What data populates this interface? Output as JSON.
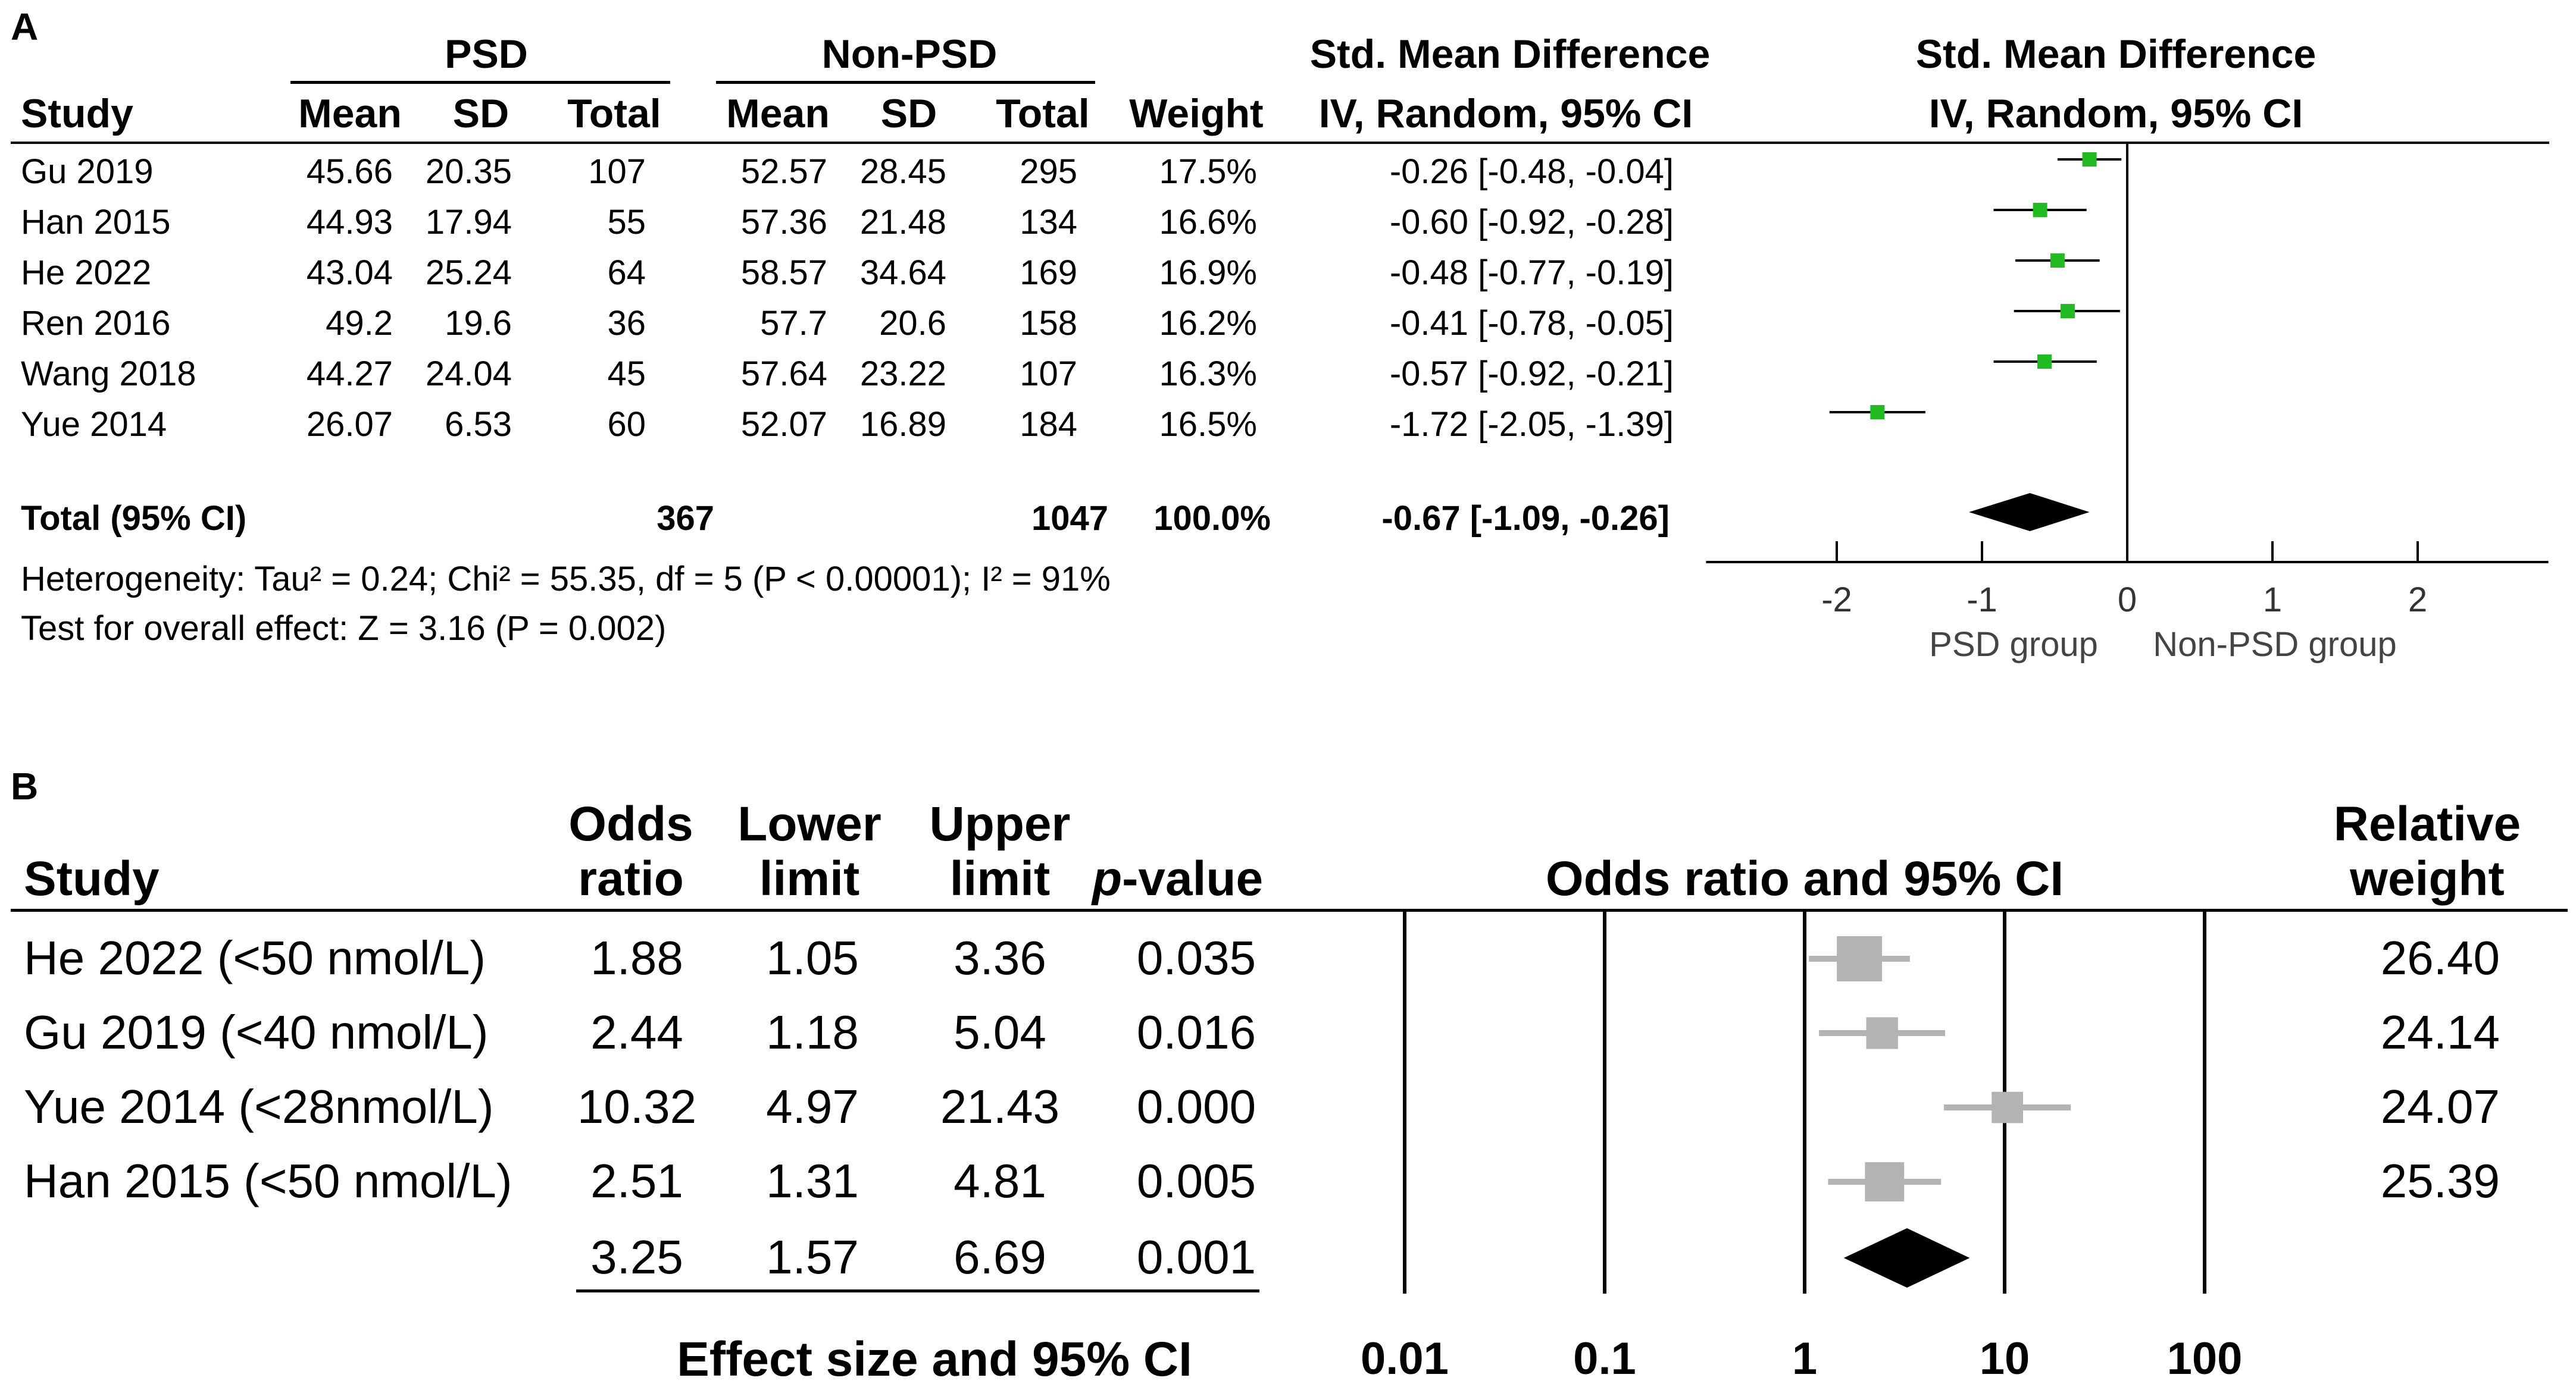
{
  "panel_a": {
    "label": "A",
    "group_headers": {
      "psd": "PSD",
      "non_psd": "Non-PSD",
      "smd_left": "Std. Mean Difference",
      "smd_right": "Std. Mean Difference"
    },
    "col_headers": {
      "study": "Study",
      "mean": "Mean",
      "sd": "SD",
      "total": "Total",
      "mean2": "Mean",
      "sd2": "SD",
      "total2": "Total",
      "weight": "Weight",
      "ci_left": "IV, Random, 95% CI",
      "ci_right": "IV, Random, 95% CI"
    },
    "rows": [
      {
        "study": "Gu 2019",
        "psd_mean": "45.66",
        "psd_sd": "20.35",
        "psd_total": "107",
        "non_mean": "52.57",
        "non_sd": "28.45",
        "non_total": "295",
        "weight": "17.5%",
        "ci": "-0.26 [-0.48, -0.04]"
      },
      {
        "study": "Han 2015",
        "psd_mean": "44.93",
        "psd_sd": "17.94",
        "psd_total": "55",
        "non_mean": "57.36",
        "non_sd": "21.48",
        "non_total": "134",
        "weight": "16.6%",
        "ci": "-0.60 [-0.92, -0.28]"
      },
      {
        "study": "He 2022",
        "psd_mean": "43.04",
        "psd_sd": "25.24",
        "psd_total": "64",
        "non_mean": "58.57",
        "non_sd": "34.64",
        "non_total": "169",
        "weight": "16.9%",
        "ci": "-0.48 [-0.77, -0.19]"
      },
      {
        "study": "Ren 2016",
        "psd_mean": "49.2",
        "psd_sd": "19.6",
        "psd_total": "36",
        "non_mean": "57.7",
        "non_sd": "20.6",
        "non_total": "158",
        "weight": "16.2%",
        "ci": "-0.41 [-0.78, -0.05]"
      },
      {
        "study": "Wang 2018",
        "psd_mean": "44.27",
        "psd_sd": "24.04",
        "psd_total": "45",
        "non_mean": "57.64",
        "non_sd": "23.22",
        "non_total": "107",
        "weight": "16.3%",
        "ci": "-0.57 [-0.92, -0.21]"
      },
      {
        "study": "Yue 2014",
        "psd_mean": "26.07",
        "psd_sd": "6.53",
        "psd_total": "60",
        "non_mean": "52.07",
        "non_sd": "16.89",
        "non_total": "184",
        "weight": "16.5%",
        "ci": "-1.72 [-2.05, -1.39]"
      }
    ],
    "total": {
      "label": "Total (95% CI)",
      "psd_total": "367",
      "non_total": "1047",
      "weight": "100.0%",
      "ci": "-0.67 [-1.09, -0.26]"
    },
    "heterogeneity": "Heterogeneity: Tau² = 0.24; Chi² = 55.35, df = 5 (P < 0.00001); I² = 91%",
    "overall_effect": "Test for overall effect: Z = 3.16 (P = 0.002)",
    "favours_left": "PSD group",
    "favours_right": "Non-PSD group",
    "colors": {
      "marker": "#22bb22",
      "diamond": "#000000"
    }
  },
  "panel_b": {
    "label": "B",
    "headers": {
      "study": "Study",
      "or_1": "Odds",
      "or_2": "ratio",
      "lower_1": "Lower",
      "lower_2": "limit",
      "upper_1": "Upper",
      "upper_2": "limit",
      "p_italic": "p",
      "p_rest": "-value",
      "plot_title": "Odds ratio and 95% CI",
      "rw_1": "Relative",
      "rw_2": "weight"
    },
    "rows": [
      {
        "study": "He 2022 (<50 nmol/L)",
        "or": "1.88",
        "lower": "1.05",
        "upper": "3.36",
        "p": "0.035",
        "weight": "26.40"
      },
      {
        "study": "Gu 2019 (<40 nmol/L)",
        "or": "2.44",
        "lower": "1.18",
        "upper": "5.04",
        "p": "0.016",
        "weight": "24.14"
      },
      {
        "study": "Yue 2014 (<28nmol/L)",
        "or": "10.32",
        "lower": "4.97",
        "upper": "21.43",
        "p": "0.000",
        "weight": "24.07"
      },
      {
        "study": "Han 2015 (<50 nmol/L)",
        "or": "2.51",
        "lower": "1.31",
        "upper": "4.81",
        "p": "0.005",
        "weight": "25.39"
      }
    ],
    "summary": {
      "or": "3.25",
      "lower": "1.57",
      "upper": "6.69",
      "p": "0.001"
    },
    "footer": "Effect size and 95% CI",
    "colors": {
      "marker": "#b3b3b3",
      "diamond": "#000000"
    }
  },
  "chart_data": [
    {
      "type": "forest",
      "title": "Std. Mean Difference IV, Random, 95% CI",
      "xlabel_left": "PSD group",
      "xlabel_right": "Non-PSD group",
      "xlim": [
        -2.9,
        2.9
      ],
      "xticks": [
        -2,
        -1,
        0,
        1,
        2
      ],
      "studies": [
        {
          "name": "Gu 2019",
          "est": -0.26,
          "lo": -0.48,
          "hi": -0.04
        },
        {
          "name": "Han 2015",
          "est": -0.6,
          "lo": -0.92,
          "hi": -0.28
        },
        {
          "name": "He 2022",
          "est": -0.48,
          "lo": -0.77,
          "hi": -0.19
        },
        {
          "name": "Ren 2016",
          "est": -0.41,
          "lo": -0.78,
          "hi": -0.05
        },
        {
          "name": "Wang 2018",
          "est": -0.57,
          "lo": -0.92,
          "hi": -0.21
        },
        {
          "name": "Yue 2014",
          "est": -1.72,
          "lo": -2.05,
          "hi": -1.39
        }
      ],
      "pooled": {
        "est": -0.67,
        "lo": -1.09,
        "hi": -0.26
      }
    },
    {
      "type": "forest",
      "scale": "log10",
      "title": "Odds ratio and 95% CI",
      "xlabel": "Effect size and 95% CI",
      "xlim": [
        0.01,
        100
      ],
      "xticks": [
        "0.01",
        "0.1",
        "1",
        "10",
        "100"
      ],
      "studies": [
        {
          "name": "He 2022 (<50 nmol/L)",
          "est": 1.88,
          "lo": 1.05,
          "hi": 3.36,
          "weight": 26.4
        },
        {
          "name": "Gu 2019 (<40 nmol/L)",
          "est": 2.44,
          "lo": 1.18,
          "hi": 5.04,
          "weight": 24.14
        },
        {
          "name": "Yue 2014 (<28nmol/L)",
          "est": 10.32,
          "lo": 4.97,
          "hi": 21.43,
          "weight": 24.07
        },
        {
          "name": "Han 2015 (<50 nmol/L)",
          "est": 2.51,
          "lo": 1.31,
          "hi": 4.81,
          "weight": 25.39
        }
      ],
      "pooled": {
        "est": 3.25,
        "lo": 1.57,
        "hi": 6.69
      }
    }
  ]
}
